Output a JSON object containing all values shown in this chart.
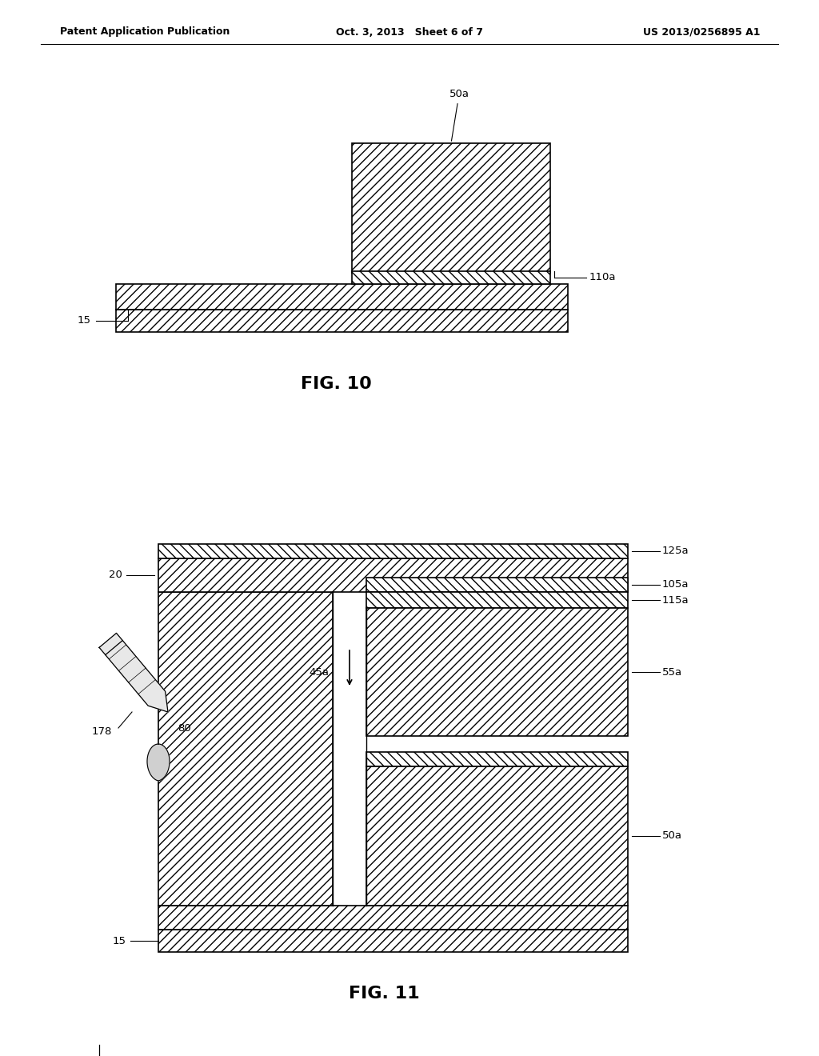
{
  "bg_color": "#ffffff",
  "header_left": "Patent Application Publication",
  "header_center": "Oct. 3, 2013   Sheet 6 of 7",
  "header_right": "US 2013/0256895 A1",
  "fig10_title": "FIG. 10",
  "fig11_title": "FIG. 11",
  "lw": 1.2,
  "hatch_fwd": "///",
  "hatch_bwd": "\\\\\\"
}
